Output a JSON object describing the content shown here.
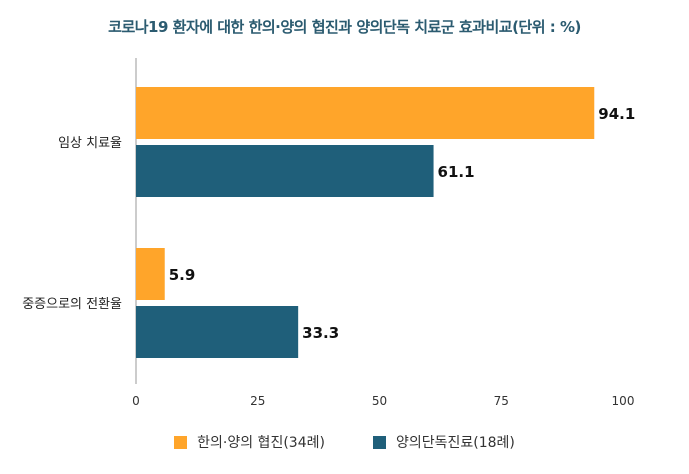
{
  "chart_data": {
    "type": "bar",
    "orientation": "horizontal",
    "title": "코로나19 환자에 대한 한의·양의 협진과 양의단독 치료군 효과비교(단위 : %)",
    "categories": [
      "임상 치료율",
      "중증으로의 전환율"
    ],
    "series": [
      {
        "name": "한의·양의 협진(34례)",
        "values": [
          94.1,
          5.9
        ],
        "color": "#FFA52A"
      },
      {
        "name": "양의단독진료(18례)",
        "values": [
          61.1,
          33.3
        ],
        "color": "#1F5F7A"
      }
    ],
    "xlim": [
      0,
      100
    ],
    "xticks": [
      0,
      25,
      50,
      75,
      100
    ],
    "grid": false,
    "legend": "bottom"
  }
}
